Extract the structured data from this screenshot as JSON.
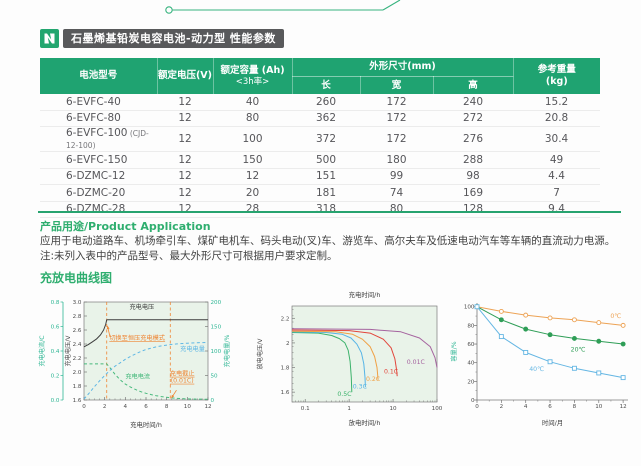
{
  "colors": {
    "brand_green": "#23a66f",
    "header_green": "#1fa371",
    "heading_green": "#2fae6f",
    "badge_gray": "#58595b",
    "orange": "#ef8432",
    "blue": "#5fb7e5",
    "teal_axis": "#2eb694",
    "chart_bg": "#e9f3e9"
  },
  "header": {
    "badge_title": "石墨烯基铅炭电容电池-动力型 性能参数",
    "logo_icon": "lightning-n-logo"
  },
  "spec_table": {
    "headers": {
      "model": "电池型号",
      "voltage": "额定电压(V)",
      "capacity_line1": "额定容量 (Ah)",
      "capacity_line2": "<3h率>",
      "dimensions": "外形尺寸(mm)",
      "length": "长",
      "width": "宽",
      "height": "高",
      "weight_line1": "参考重量",
      "weight_line2": "(kg)"
    },
    "rows": [
      {
        "model": "6-EVFC-40",
        "note": "",
        "voltage": "12",
        "capacity": "40",
        "length": "260",
        "width": "172",
        "height": "240",
        "weight": "15.2"
      },
      {
        "model": "6-EVFC-80",
        "note": "",
        "voltage": "12",
        "capacity": "80",
        "length": "362",
        "width": "172",
        "height": "272",
        "weight": "20.8"
      },
      {
        "model": "6-EVFC-100",
        "note": "(CJD-12-100)",
        "voltage": "12",
        "capacity": "100",
        "length": "372",
        "width": "172",
        "height": "276",
        "weight": "30.4"
      },
      {
        "model": "6-EVFC-150",
        "note": "",
        "voltage": "12",
        "capacity": "150",
        "length": "500",
        "width": "180",
        "height": "288",
        "weight": "49"
      },
      {
        "model": "6-DZMC-12",
        "note": "",
        "voltage": "12",
        "capacity": "12",
        "length": "151",
        "width": "99",
        "height": "98",
        "weight": "4.4"
      },
      {
        "model": "6-DZMC-20",
        "note": "",
        "voltage": "12",
        "capacity": "20",
        "length": "181",
        "width": "74",
        "height": "169",
        "weight": "7"
      },
      {
        "model": "6-DZMC-28",
        "note": "",
        "voltage": "12",
        "capacity": "28",
        "length": "318",
        "width": "80",
        "height": "128",
        "weight": "9.4"
      }
    ]
  },
  "application": {
    "heading": "产品用途/Product Application",
    "line1": "应用于电动道路车、机场牵引车、煤矿电机车、码头电动(叉)车、游览车、高尔夫车及低速电动汽车等车辆的直流动力电源。",
    "line2": "注:未列入表中的产品型号、最大外形尺寸可根据用户要求定制。"
  },
  "curves_heading": "充放电曲线图",
  "chart_data": [
    {
      "id": "charge-curve",
      "type": "line",
      "bg": "#e9f3e9",
      "frame": "box",
      "xlim": [
        0,
        12
      ],
      "xticks": [
        0,
        2,
        4,
        6,
        8,
        10,
        12
      ],
      "xminor": 0.5,
      "xlabel": "充电时间/h",
      "axes": {
        "current": {
          "label": "充电电流/C",
          "lim": [
            0,
            0.8
          ],
          "ticks": [
            0.0,
            0.2,
            0.4,
            0.6,
            0.8
          ],
          "color": "#2eb694",
          "pos": "left-outer",
          "fmt": 1
        },
        "voltage": {
          "label": "充电电压/V",
          "lim": [
            1.6,
            3.0
          ],
          "ticks": [
            1.6,
            1.8,
            2.0,
            2.2,
            2.4,
            2.6,
            2.8,
            3.0
          ],
          "color": "#4b4b4b",
          "pos": "left",
          "fmt": 1
        },
        "pct": {
          "label": "充电电量/%",
          "lim": [
            0,
            200
          ],
          "ticks": [
            0,
            50,
            100,
            150,
            200
          ],
          "color": "#2eb694",
          "pos": "right",
          "fmt": 0
        }
      },
      "series": [
        {
          "name": "充电电压",
          "axis": "voltage",
          "color": "#3d3d3d",
          "dash": null,
          "points": [
            [
              0,
              2.36
            ],
            [
              0.4,
              2.39
            ],
            [
              0.8,
              2.43
            ],
            [
              1.2,
              2.47
            ],
            [
              1.6,
              2.53
            ],
            [
              1.9,
              2.6
            ],
            [
              2.1,
              2.68
            ],
            [
              2.2,
              2.745
            ],
            [
              12,
              2.745
            ]
          ]
        },
        {
          "name": "充电电流",
          "axis": "current",
          "color": "#46b97c",
          "dash": "3,2.5",
          "points": [
            [
              0,
              0.295
            ],
            [
              2.2,
              0.295
            ],
            [
              2.5,
              0.265
            ],
            [
              3,
              0.21
            ],
            [
              3.5,
              0.165
            ],
            [
              4,
              0.13
            ],
            [
              4.5,
              0.105
            ],
            [
              5,
              0.085
            ],
            [
              5.5,
              0.068
            ],
            [
              6,
              0.055
            ],
            [
              6.5,
              0.044
            ],
            [
              7,
              0.035
            ],
            [
              7.5,
              0.028
            ],
            [
              8,
              0.022
            ],
            [
              8.35,
              0.018
            ],
            [
              9,
              0.013
            ],
            [
              10,
              0.009
            ],
            [
              11,
              0.007
            ],
            [
              12,
              0.006
            ]
          ]
        },
        {
          "name": "充电电量",
          "axis": "pct",
          "color": "#5fb7e5",
          "dash": "3,2.5",
          "points": [
            [
              0,
              2
            ],
            [
              0.5,
              14
            ],
            [
              1,
              27
            ],
            [
              1.5,
              39
            ],
            [
              2,
              50
            ],
            [
              2.2,
              54
            ],
            [
              2.6,
              62
            ],
            [
              3,
              69
            ],
            [
              3.5,
              76
            ],
            [
              4,
              83
            ],
            [
              4.5,
              89
            ],
            [
              5,
              94
            ],
            [
              5.5,
              99
            ],
            [
              6,
              103
            ],
            [
              6.5,
              106
            ],
            [
              7,
              108.5
            ],
            [
              7.5,
              110.5
            ],
            [
              8,
              112
            ],
            [
              8.5,
              113.5
            ],
            [
              9,
              114.5
            ],
            [
              10,
              116
            ],
            [
              11,
              117
            ],
            [
              12,
              117.5
            ]
          ]
        }
      ],
      "vlines": [
        {
          "x": 2.2,
          "color": "#ef8432"
        },
        {
          "x": 8.35,
          "color": "#ef8432"
        }
      ],
      "texts": [
        {
          "t": "充电电压",
          "x": 5.6,
          "y": 2.9,
          "axis": "voltage",
          "color": "#3d3d3d",
          "anchor": "middle"
        },
        {
          "t": "切换至恒压充电模式",
          "x": 2.45,
          "y": 2.46,
          "axis": "voltage",
          "color": "#ef8432",
          "anchor": "start",
          "underline": true
        },
        {
          "t": "充电电量",
          "x": 11.7,
          "y": 100,
          "axis": "pct",
          "color": "#5fb7e5",
          "anchor": "end"
        },
        {
          "t": "充电电流",
          "x": 4.0,
          "y": 0.175,
          "axis": "current",
          "color": "#46b97c",
          "anchor": "start"
        },
        {
          "t": "充电截止\n(0.01C)",
          "x": 9.5,
          "y": 0.2,
          "axis": "current",
          "color": "#ef8432",
          "anchor": "middle",
          "underline": true
        }
      ],
      "arrows": [
        {
          "x1": 2.52,
          "y1": 2.5,
          "x2": 2.27,
          "y2": 2.66,
          "axis": "voltage",
          "color": "#ef8432"
        },
        {
          "x1": 8.95,
          "y1": 0.08,
          "x2": 8.45,
          "y2": 0.015,
          "axis": "current",
          "color": "#ef8432"
        }
      ]
    },
    {
      "id": "discharge-curve",
      "type": "line",
      "bg": "#e9f3e9",
      "frame": "box",
      "xscale": "log",
      "xlim": [
        0.05,
        100
      ],
      "xticks": [
        0.1,
        1,
        10,
        100
      ],
      "xlabel": "放电时间/h",
      "top_label": "充电时间/h",
      "ylabel": "放电电压/V",
      "ylim": [
        1.52,
        2.3
      ],
      "yticks": [
        1.6,
        1.8,
        2.0,
        2.2
      ],
      "yminor": 0.05,
      "series": [
        {
          "name": "0.5C",
          "color": "#3cb26b",
          "dash": null,
          "points": [
            [
              0.05,
              2.085
            ],
            [
              0.2,
              2.08
            ],
            [
              0.4,
              2.06
            ],
            [
              0.6,
              2.035
            ],
            [
              0.8,
              2.0
            ],
            [
              0.95,
              1.94
            ],
            [
              1.05,
              1.85
            ],
            [
              1.12,
              1.72
            ],
            [
              1.15,
              1.6
            ]
          ]
        },
        {
          "name": "0.3C",
          "color": "#55b4e6",
          "dash": null,
          "points": [
            [
              0.05,
              2.09
            ],
            [
              0.3,
              2.085
            ],
            [
              0.7,
              2.07
            ],
            [
              1.1,
              2.04
            ],
            [
              1.5,
              1.99
            ],
            [
              1.9,
              1.92
            ],
            [
              2.15,
              1.83
            ],
            [
              2.3,
              1.72
            ],
            [
              2.35,
              1.64
            ]
          ]
        },
        {
          "name": "0.2C",
          "color": "#f0a044",
          "dash": null,
          "points": [
            [
              0.05,
              2.095
            ],
            [
              0.5,
              2.09
            ],
            [
              1.2,
              2.07
            ],
            [
              2,
              2.03
            ],
            [
              3,
              1.97
            ],
            [
              3.8,
              1.89
            ],
            [
              4.3,
              1.8
            ],
            [
              4.55,
              1.7
            ]
          ]
        },
        {
          "name": "0.1C",
          "color": "#e2453b",
          "dash": null,
          "points": [
            [
              0.05,
              2.105
            ],
            [
              1,
              2.1
            ],
            [
              3,
              2.08
            ],
            [
              6,
              2.03
            ],
            [
              9,
              1.96
            ],
            [
              11,
              1.87
            ],
            [
              12,
              1.78
            ],
            [
              12.4,
              1.73
            ]
          ]
        },
        {
          "name": "0.01C",
          "color": "#a5639f",
          "dash": null,
          "points": [
            [
              0.05,
              2.115
            ],
            [
              3,
              2.11
            ],
            [
              15,
              2.09
            ],
            [
              40,
              2.04
            ],
            [
              70,
              1.97
            ],
            [
              90,
              1.88
            ],
            [
              100,
              1.8
            ]
          ]
        }
      ],
      "texts": [
        {
          "t": "0.5C",
          "x": 0.78,
          "y": 1.57,
          "color": "#3cb26b",
          "anchor": "middle"
        },
        {
          "t": "0.3C",
          "x": 1.75,
          "y": 1.63,
          "color": "#55b4e6",
          "anchor": "middle"
        },
        {
          "t": "0.2C",
          "x": 3.5,
          "y": 1.69,
          "color": "#f0a044",
          "anchor": "middle"
        },
        {
          "t": "0.1C",
          "x": 9.0,
          "y": 1.75,
          "color": "#e2453b",
          "anchor": "middle"
        },
        {
          "t": "0.01C",
          "x": 33,
          "y": 1.83,
          "color": "#a5639f",
          "anchor": "middle"
        }
      ]
    },
    {
      "id": "capacity-retention",
      "type": "line",
      "frame": "axes",
      "xlim": [
        0,
        12.4
      ],
      "xticks": [
        0,
        2,
        4,
        6,
        8,
        10,
        12
      ],
      "xminor": 1,
      "xlabel": "时间/月",
      "ylabel": "容量/%",
      "ylabel_color": "#2eb694",
      "ylim": [
        0,
        104
      ],
      "yticks": [
        0,
        20,
        40,
        60,
        80,
        100
      ],
      "yminor": 10,
      "x": [
        0,
        2,
        4,
        6,
        8,
        10,
        12
      ],
      "series": [
        {
          "name": "0℃",
          "color": "#eda355",
          "marker": "circle-open",
          "values": [
            100,
            95,
            91,
            88,
            86,
            83,
            80
          ]
        },
        {
          "name": "20℃",
          "color": "#2f9e57",
          "marker": "circle-filled",
          "values": [
            100,
            86,
            76,
            70,
            66,
            63,
            60
          ]
        },
        {
          "name": "40℃",
          "color": "#64b6e3",
          "marker": "square-open",
          "values": [
            100,
            68,
            51,
            41,
            34,
            29,
            24
          ]
        }
      ],
      "texts": [
        {
          "t": "0℃",
          "x": 11.4,
          "y": 88,
          "color": "#eda355",
          "anchor": "middle"
        },
        {
          "t": "20℃",
          "x": 8.3,
          "y": 52,
          "color": "#2f9e57",
          "anchor": "middle"
        },
        {
          "t": "40℃",
          "x": 4.9,
          "y": 31,
          "color": "#64b6e3",
          "anchor": "middle"
        }
      ]
    }
  ]
}
